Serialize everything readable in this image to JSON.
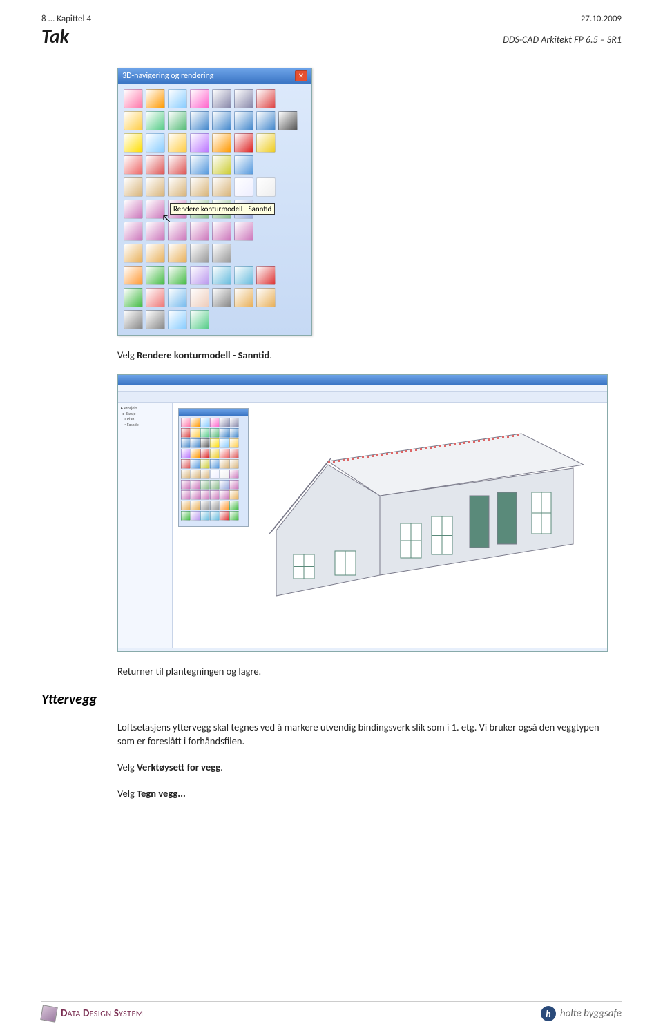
{
  "header": {
    "chapter": "8 ... Kapittel 4",
    "date": "27.10.2009",
    "title_left": "Tak",
    "title_right": "DDS-CAD Arkitekt  FP  6.5 – SR1"
  },
  "palette": {
    "title": "3D-navigering og rendering",
    "tooltip": "Rendere konturmodell - Sanntid",
    "rows": [
      [
        "#f7a",
        "#f90",
        "#8cf",
        "#f6c",
        "#88a",
        "#88a",
        "#d44",
        ""
      ],
      [
        "#fc4",
        "#5c8",
        "#5b7",
        "#48c",
        "#48c",
        "#48c",
        "#48c",
        "#555"
      ],
      [
        "#fd0",
        "#8cf",
        "#fc4",
        "#b7f",
        "#f90",
        "#d22",
        "#ec2",
        ""
      ],
      [
        "#e66",
        "#d55",
        "#d55",
        "#59d",
        "#cc3",
        "#59d",
        "",
        ""
      ],
      [
        "#d8b47a",
        "#d8b47a",
        "#d8b47a",
        "#d8b47a",
        "#d8b47a",
        "#eef",
        "#eee",
        ""
      ],
      [
        "#c7b",
        "#c7b",
        "#c7b",
        "#8b8",
        "#8b8",
        "#9ad",
        "",
        ""
      ],
      [
        "#c7b",
        "#c7b",
        "#c7b",
        "#c7b",
        "#c7b",
        "#c7b",
        "",
        ""
      ],
      [
        "#e8b05a",
        "#e8b05a",
        "#e8b05a",
        "#999",
        "#999",
        "",
        "",
        ""
      ],
      [
        "#f93",
        "#4b4",
        "#4b4",
        "#b9e",
        "#6bd",
        "#6bd",
        "#d33",
        ""
      ],
      [
        "#4b4",
        "#e77",
        "#7be",
        "#ecb",
        "#888",
        "#e8b05a",
        "#e8b05a",
        ""
      ],
      [
        "#888",
        "#888",
        "#8cf",
        "#5c8",
        "",
        "",
        "",
        ""
      ]
    ]
  },
  "texts": {
    "p1_a": "Velg ",
    "p1_b": "Rendere konturmodell - Sanntid",
    "p1_c": ".",
    "p2": "Returner til plantegningen og lagre.",
    "section": "Yttervegg",
    "p3": "Loftsetasjens yttervegg skal tegnes ved å markere utvendig bindingsverk slik som i 1. etg. Vi bruker også den veggtypen som er foreslått i forhåndsfilen.",
    "p4_a": "Velg ",
    "p4_b": "Verktøysett for vegg",
    "p4_c": ".",
    "p5_a": "Velg ",
    "p5_b": "Tegn vegg...",
    "p5_c": ""
  },
  "house": {
    "wall_color": "#e2e6ec",
    "roof_color": "#f0f2f5",
    "line_color": "#7a7a8a",
    "tile_color": "#d66",
    "window_frame": "#5a8a7a",
    "door_color": "#5a8a7a"
  },
  "footer": {
    "dds": "DATA DESIGN SYSTEM",
    "holte": "holte byggsafe",
    "h": "h"
  }
}
